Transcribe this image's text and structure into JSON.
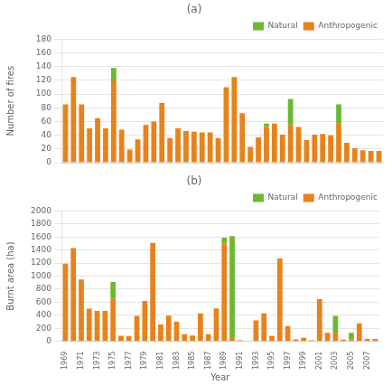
{
  "chart_data": [
    {
      "type": "bar",
      "title": "(a)",
      "y_label": "Number of fires",
      "categories": [
        null,
        null,
        null,
        null,
        null,
        null,
        null,
        null,
        null,
        null,
        null,
        null,
        null,
        null,
        null,
        null,
        null,
        null,
        null,
        null,
        null,
        null,
        null,
        null,
        null,
        null,
        null,
        null,
        null,
        null,
        null,
        null,
        null,
        null,
        null,
        null,
        null,
        null,
        null,
        null
      ],
      "series": [
        {
          "name": "Anthropogenic",
          "color": "#E8821A",
          "values": [
            85,
            125,
            85,
            50,
            65,
            50,
            120,
            48,
            19,
            34,
            55,
            60,
            87,
            36,
            50,
            46,
            45,
            44,
            44,
            36,
            110,
            125,
            72,
            23,
            37,
            52,
            57,
            41,
            55,
            52,
            33,
            41,
            42,
            40,
            57,
            29,
            21,
            18,
            17,
            17
          ]
        },
        {
          "name": "Natural",
          "color": "#6DB832",
          "values": [
            0,
            0,
            0,
            0,
            0,
            0,
            18,
            0,
            0,
            0,
            0,
            0,
            0,
            0,
            0,
            0,
            0,
            0,
            0,
            0,
            0,
            0,
            0,
            0,
            0,
            5,
            0,
            0,
            38,
            0,
            0,
            0,
            0,
            0,
            28,
            0,
            0,
            0,
            0,
            0
          ]
        }
      ],
      "stacked": true,
      "ylim": [
        0,
        180
      ],
      "yticks": [
        0,
        20,
        40,
        60,
        80,
        100,
        120,
        140,
        160,
        180
      ],
      "grid": true,
      "legend": "upper right",
      "tick_labels": "y"
    },
    {
      "type": "bar",
      "title": "(b)",
      "x_label": "Year",
      "y_label": "Burnt area (ha)",
      "categories": [
        "1969",
        null,
        "1971",
        null,
        "1973",
        null,
        "1975",
        null,
        "1977",
        null,
        "1979",
        null,
        "1981",
        null,
        "1983",
        null,
        "1985",
        null,
        "1987",
        null,
        "1989",
        null,
        "1991",
        null,
        "1993",
        null,
        "1995",
        null,
        "1997",
        null,
        "1999",
        null,
        "2001",
        null,
        "2003",
        null,
        "2005",
        null,
        "2007",
        null
      ],
      "series": [
        {
          "name": "Anthropogenic",
          "color": "#E8821A",
          "values": [
            1190,
            1430,
            950,
            500,
            465,
            465,
            650,
            85,
            80,
            390,
            620,
            1510,
            260,
            395,
            300,
            110,
            90,
            430,
            110,
            505,
            1500,
            65,
            15,
            5,
            320,
            430,
            80,
            1270,
            235,
            30,
            55,
            15,
            645,
            130,
            135,
            25,
            30,
            275,
            35,
            35
          ]
        },
        {
          "name": "Natural",
          "color": "#6DB832",
          "values": [
            0,
            0,
            0,
            0,
            0,
            0,
            260,
            0,
            0,
            0,
            0,
            0,
            0,
            0,
            0,
            0,
            0,
            0,
            0,
            0,
            90,
            1550,
            0,
            0,
            0,
            0,
            0,
            0,
            0,
            0,
            0,
            0,
            0,
            0,
            255,
            0,
            100,
            0,
            0,
            0
          ]
        }
      ],
      "stacked": true,
      "ylim": [
        0,
        2000
      ],
      "yticks": [
        0,
        200,
        400,
        600,
        800,
        1000,
        1200,
        1400,
        1600,
        1800,
        2000
      ],
      "grid": true,
      "legend": "upper right"
    }
  ]
}
